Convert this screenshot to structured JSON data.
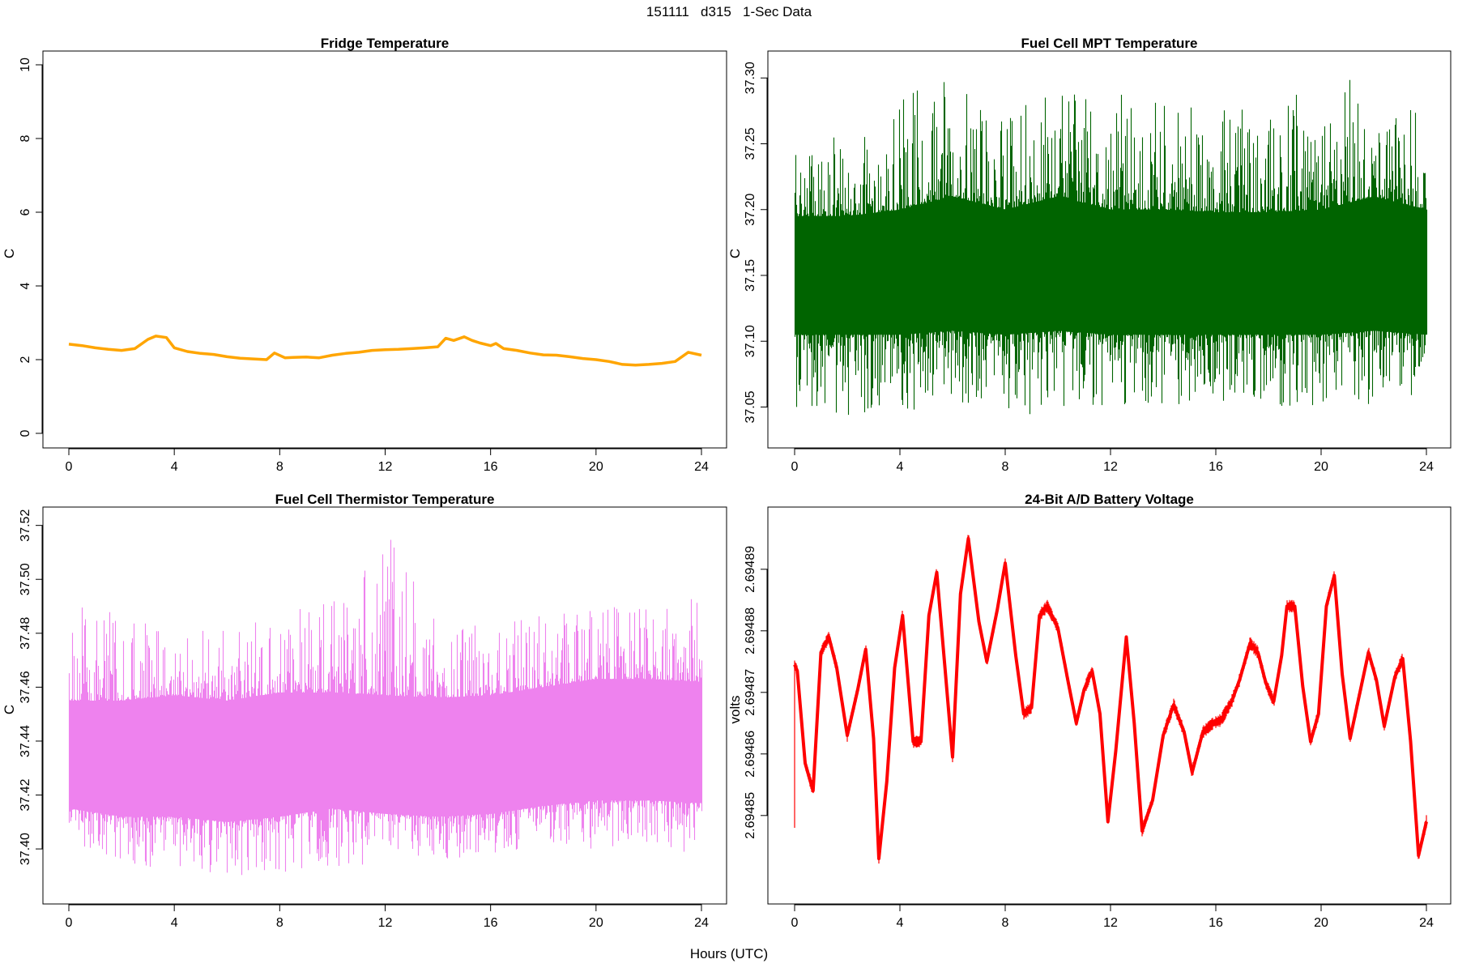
{
  "page": {
    "title": "151111   d315   1-Sec Data",
    "xlabel": "Hours (UTC)"
  },
  "chart_data": [
    {
      "type": "line",
      "title": "Fridge Temperature",
      "xlabel": "",
      "ylabel": "C",
      "xlim": [
        0,
        24
      ],
      "ylim": [
        0,
        10
      ],
      "xticks": [
        0,
        4,
        8,
        12,
        16,
        20,
        24
      ],
      "yticks": [
        "0",
        "2",
        "4",
        "6",
        "8",
        "10"
      ],
      "color": "#FFA500",
      "series": [
        {
          "name": "Fridge Temperature",
          "x": [
            0,
            0.5,
            1,
            1.5,
            2,
            2.5,
            3,
            3.3,
            3.7,
            4,
            4.5,
            5,
            5.5,
            6,
            6.5,
            7,
            7.5,
            7.8,
            8.2,
            8.5,
            9,
            9.5,
            10,
            10.5,
            11,
            11.5,
            12,
            12.5,
            13,
            13.5,
            14,
            14.3,
            14.6,
            15,
            15.3,
            15.6,
            16,
            16.2,
            16.5,
            17,
            17.5,
            18,
            18.5,
            19,
            19.5,
            20,
            20.5,
            21,
            21.5,
            22,
            22.5,
            23,
            23.5,
            24
          ],
          "y": [
            2.42,
            2.38,
            2.32,
            2.28,
            2.25,
            2.3,
            2.55,
            2.64,
            2.6,
            2.32,
            2.22,
            2.17,
            2.14,
            2.08,
            2.04,
            2.02,
            2.0,
            2.18,
            2.05,
            2.06,
            2.07,
            2.05,
            2.12,
            2.17,
            2.2,
            2.25,
            2.27,
            2.28,
            2.3,
            2.32,
            2.35,
            2.58,
            2.52,
            2.62,
            2.52,
            2.45,
            2.38,
            2.44,
            2.3,
            2.25,
            2.18,
            2.13,
            2.12,
            2.08,
            2.03,
            2.0,
            1.95,
            1.87,
            1.85,
            1.87,
            1.9,
            1.95,
            2.2,
            2.12
          ]
        }
      ]
    },
    {
      "type": "line",
      "title": "Fuel Cell MPT Temperature",
      "xlabel": "",
      "ylabel": "C",
      "xlim": [
        0,
        24
      ],
      "ylim": [
        37.03,
        37.31
      ],
      "xticks": [
        0,
        4,
        8,
        12,
        16,
        20,
        24
      ],
      "yticks": [
        "37.05",
        "37.10",
        "37.15",
        "37.20",
        "37.25",
        "37.30"
      ],
      "color": "#006400",
      "series": [
        {
          "name": "Fuel Cell MPT Temperature",
          "style": "dense 1-sec noise band",
          "x": [
            0,
            2,
            4,
            6,
            8,
            10,
            12,
            14,
            16,
            18,
            20,
            22,
            24
          ],
          "center": [
            37.15,
            37.15,
            37.152,
            37.155,
            37.152,
            37.155,
            37.152,
            37.153,
            37.152,
            37.152,
            37.152,
            37.155,
            37.152
          ],
          "core_low": [
            37.105,
            37.105,
            37.105,
            37.108,
            37.105,
            37.108,
            37.105,
            37.105,
            37.105,
            37.105,
            37.105,
            37.108,
            37.105
          ],
          "core_high": [
            37.195,
            37.195,
            37.2,
            37.21,
            37.2,
            37.21,
            37.2,
            37.2,
            37.198,
            37.198,
            37.2,
            37.21,
            37.2
          ],
          "min": [
            37.05,
            37.04,
            37.045,
            37.05,
            37.04,
            37.05,
            37.045,
            37.048,
            37.05,
            37.05,
            37.05,
            37.05,
            37.05
          ],
          "max": [
            37.27,
            37.25,
            37.29,
            37.3,
            37.27,
            37.3,
            37.29,
            37.28,
            37.28,
            37.28,
            37.3,
            37.3,
            37.29
          ]
        }
      ]
    },
    {
      "type": "line",
      "title": "Fuel Cell Thermistor Temperature",
      "xlabel": "",
      "ylabel": "C",
      "xlim": [
        0,
        24
      ],
      "ylim": [
        37.385,
        37.522
      ],
      "xticks": [
        0,
        4,
        8,
        12,
        16,
        20,
        24
      ],
      "yticks": [
        "37.40",
        "37.42",
        "37.44",
        "37.46",
        "37.48",
        "37.50",
        "37.52"
      ],
      "color": "#EE82EE",
      "series": [
        {
          "name": "Fuel Cell Thermistor Temperature",
          "style": "dense 1-sec noise band",
          "x": [
            0,
            2,
            4,
            6,
            8,
            10,
            12,
            14,
            16,
            18,
            20,
            22,
            24
          ],
          "center": [
            37.435,
            37.433,
            37.434,
            37.432,
            37.434,
            37.435,
            37.434,
            37.433,
            37.434,
            37.436,
            37.438,
            37.438,
            37.437
          ],
          "core_low": [
            37.415,
            37.412,
            37.412,
            37.41,
            37.412,
            37.415,
            37.413,
            37.412,
            37.413,
            37.416,
            37.418,
            37.418,
            37.417
          ],
          "core_high": [
            37.455,
            37.455,
            37.457,
            37.455,
            37.458,
            37.458,
            37.457,
            37.456,
            37.457,
            37.46,
            37.463,
            37.463,
            37.462
          ],
          "min": [
            37.398,
            37.395,
            37.392,
            37.39,
            37.39,
            37.393,
            37.395,
            37.395,
            37.398,
            37.4,
            37.4,
            37.402,
            37.397
          ],
          "max": [
            37.495,
            37.488,
            37.48,
            37.485,
            37.487,
            37.493,
            37.518,
            37.485,
            37.483,
            37.487,
            37.495,
            37.49,
            37.495
          ]
        }
      ]
    },
    {
      "type": "line",
      "title": "24-Bit A/D Battery Voltage",
      "xlabel": "",
      "ylabel": "volts",
      "xlim": [
        0,
        24
      ],
      "ylim": [
        2.694838,
        2.694898
      ],
      "xticks": [
        0,
        4,
        8,
        12,
        16,
        20,
        24
      ],
      "yticks": [
        "2.69485",
        "2.69486",
        "2.69487",
        "2.69488",
        "2.69489"
      ],
      "color": "#FF0000",
      "series": [
        {
          "name": "24-Bit A/D Battery Voltage",
          "x": [
            0,
            0.1,
            0.4,
            0.7,
            1.0,
            1.3,
            1.6,
            2.0,
            2.4,
            2.7,
            3.0,
            3.2,
            3.5,
            3.8,
            4.1,
            4.5,
            4.8,
            5.1,
            5.4,
            5.7,
            6.0,
            6.3,
            6.6,
            7.0,
            7.3,
            7.7,
            8.0,
            8.4,
            8.7,
            9.0,
            9.3,
            9.6,
            10.0,
            10.4,
            10.7,
            11.0,
            11.3,
            11.6,
            11.9,
            12.2,
            12.6,
            12.9,
            13.2,
            13.6,
            14.0,
            14.4,
            14.8,
            15.1,
            15.5,
            15.9,
            16.2,
            16.6,
            16.9,
            17.3,
            17.6,
            17.9,
            18.2,
            18.5,
            18.7,
            19.0,
            19.3,
            19.6,
            19.9,
            20.2,
            20.5,
            20.8,
            21.1,
            21.4,
            21.8,
            22.1,
            22.4,
            22.8,
            23.1,
            23.4,
            23.7,
            24.0
          ],
          "y": [
            2.6948745,
            2.6948735,
            2.6948585,
            2.694854,
            2.6948765,
            2.694879,
            2.694874,
            2.694863,
            2.6948705,
            2.694877,
            2.6948625,
            2.694843,
            2.6948555,
            2.694874,
            2.6948825,
            2.694862,
            2.694862,
            2.6948825,
            2.6948895,
            2.6948745,
            2.6948595,
            2.694886,
            2.694895,
            2.6948815,
            2.694875,
            2.6948835,
            2.694891,
            2.694876,
            2.6948665,
            2.6948675,
            2.6948825,
            2.694884,
            2.6948805,
            2.6948715,
            2.694865,
            2.6948705,
            2.6948735,
            2.6948665,
            2.694849,
            2.6948605,
            2.694879,
            2.694865,
            2.6948475,
            2.6948525,
            2.694863,
            2.694868,
            2.6948635,
            2.694857,
            2.6948635,
            2.694865,
            2.6948655,
            2.6948685,
            2.694872,
            2.694878,
            2.6948765,
            2.6948715,
            2.6948685,
            2.694876,
            2.694884,
            2.694884,
            2.694871,
            2.694862,
            2.6948665,
            2.694884,
            2.694889,
            2.694873,
            2.6948625,
            2.6948685,
            2.6948765,
            2.694872,
            2.6948645,
            2.6948725,
            2.6948755,
            2.694862,
            2.6948435,
            2.694849
          ]
        }
      ]
    }
  ]
}
